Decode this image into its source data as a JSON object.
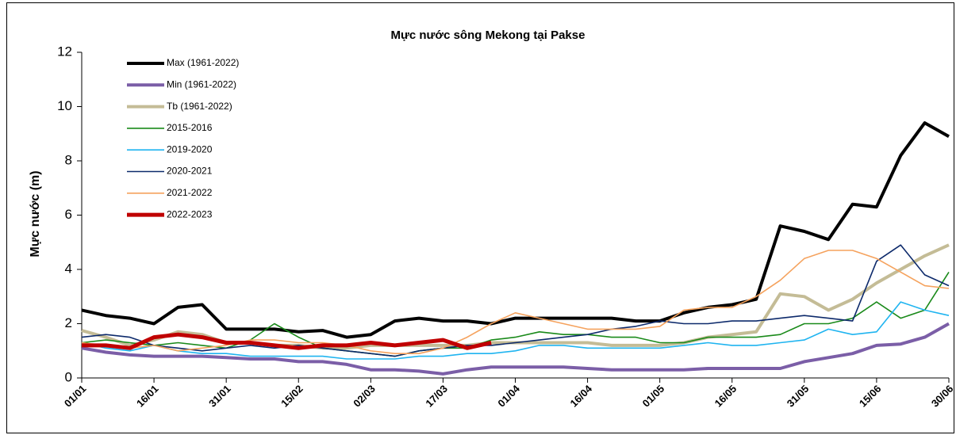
{
  "chart_data": {
    "type": "line",
    "title": "Mực nước sông Mekong tại Pakse",
    "y_label": "Mực nước (m)",
    "x": [
      1,
      6,
      11,
      16,
      21,
      26,
      31,
      36,
      41,
      46,
      51,
      56,
      61,
      66,
      71,
      76,
      81,
      86,
      91,
      96,
      101,
      106,
      111,
      116,
      121,
      126,
      131,
      136,
      141,
      146,
      151,
      156,
      161,
      166,
      171,
      176,
      181
    ],
    "xlim": [
      1,
      181
    ],
    "xticks": [
      {
        "value": 1,
        "label": "01/01"
      },
      {
        "value": 16,
        "label": "16/01"
      },
      {
        "value": 31,
        "label": "31/01"
      },
      {
        "value": 46,
        "label": "15/02"
      },
      {
        "value": 61,
        "label": "02/03"
      },
      {
        "value": 76,
        "label": "17/03"
      },
      {
        "value": 91,
        "label": "01/04"
      },
      {
        "value": 106,
        "label": "16/04"
      },
      {
        "value": 121,
        "label": "01/05"
      },
      {
        "value": 136,
        "label": "16/05"
      },
      {
        "value": 151,
        "label": "31/05"
      },
      {
        "value": 166,
        "label": "15/06"
      },
      {
        "value": 181,
        "label": "30/06"
      }
    ],
    "ylim": [
      0,
      12
    ],
    "yticks": [
      0,
      2,
      4,
      6,
      8,
      10,
      12
    ],
    "legend": "upper left",
    "series": [
      {
        "name": "Max (1961-2022)",
        "color": "#000000",
        "width": 4,
        "values": [
          2.5,
          2.3,
          2.2,
          2.0,
          2.6,
          2.7,
          1.8,
          1.8,
          1.8,
          1.7,
          1.75,
          1.5,
          1.6,
          2.1,
          2.2,
          2.1,
          2.1,
          2.0,
          2.2,
          2.2,
          2.2,
          2.2,
          2.2,
          2.1,
          2.1,
          2.4,
          2.6,
          2.7,
          2.9,
          5.6,
          5.4,
          5.1,
          6.4,
          6.3,
          8.2,
          9.4,
          8.9
        ]
      },
      {
        "name": "Min (1961-2022)",
        "color": "#7b5ea7",
        "width": 4,
        "values": [
          1.1,
          0.95,
          0.85,
          0.8,
          0.8,
          0.8,
          0.75,
          0.7,
          0.7,
          0.6,
          0.6,
          0.5,
          0.3,
          0.3,
          0.25,
          0.15,
          0.3,
          0.4,
          0.4,
          0.4,
          0.4,
          0.35,
          0.3,
          0.3,
          0.3,
          0.3,
          0.35,
          0.35,
          0.35,
          0.35,
          0.6,
          0.75,
          0.9,
          1.2,
          1.25,
          1.5,
          2.0
        ]
      },
      {
        "name": "Tb (1961-2022)",
        "color": "#c4bc96",
        "width": 4,
        "values": [
          1.75,
          1.5,
          1.2,
          1.4,
          1.7,
          1.6,
          1.3,
          1.3,
          1.2,
          1.2,
          1.1,
          1.1,
          1.2,
          1.2,
          1.2,
          1.2,
          1.2,
          1.3,
          1.3,
          1.3,
          1.3,
          1.3,
          1.2,
          1.2,
          1.2,
          1.3,
          1.5,
          1.6,
          1.7,
          3.1,
          3.0,
          2.5,
          2.9,
          3.5,
          4.0,
          4.5,
          4.9
        ]
      },
      {
        "name": "2015-2016",
        "color": "#1a8a1a",
        "width": 1.6,
        "values": [
          1.3,
          1.4,
          1.3,
          1.2,
          1.3,
          1.2,
          1.1,
          1.4,
          2.0,
          1.5,
          1.1,
          1.0,
          0.9,
          0.8,
          1.0,
          1.1,
          1.1,
          1.4,
          1.5,
          1.7,
          1.6,
          1.6,
          1.5,
          1.5,
          1.3,
          1.3,
          1.5,
          1.5,
          1.5,
          1.6,
          2.0,
          2.0,
          2.2,
          2.8,
          2.2,
          2.5,
          3.9
        ]
      },
      {
        "name": "2019-2020",
        "color": "#1fb4f0",
        "width": 1.6,
        "values": [
          1.3,
          1.1,
          1.0,
          1.2,
          1.0,
          0.9,
          0.9,
          0.8,
          0.8,
          0.8,
          0.8,
          0.7,
          0.7,
          0.7,
          0.8,
          0.8,
          0.9,
          0.9,
          1.0,
          1.2,
          1.2,
          1.1,
          1.1,
          1.1,
          1.1,
          1.2,
          1.3,
          1.2,
          1.2,
          1.3,
          1.4,
          1.8,
          1.6,
          1.7,
          2.8,
          2.5,
          2.3
        ]
      },
      {
        "name": "2020-2021",
        "color": "#0d2a6b",
        "width": 1.6,
        "values": [
          1.5,
          1.6,
          1.5,
          1.2,
          1.1,
          1.0,
          1.1,
          1.2,
          1.1,
          1.2,
          1.1,
          1.0,
          0.9,
          0.8,
          1.0,
          1.1,
          1.2,
          1.2,
          1.3,
          1.4,
          1.5,
          1.6,
          1.8,
          1.9,
          2.1,
          2.0,
          2.0,
          2.1,
          2.1,
          2.2,
          2.3,
          2.2,
          2.1,
          4.3,
          4.9,
          3.8,
          3.4
        ]
      },
      {
        "name": "2021-2022",
        "color": "#f5a25d",
        "width": 1.6,
        "values": [
          1.3,
          1.2,
          1.1,
          1.2,
          1.0,
          1.1,
          1.2,
          1.4,
          1.4,
          1.3,
          1.3,
          1.2,
          1.0,
          0.9,
          0.9,
          1.1,
          1.5,
          2.0,
          2.4,
          2.2,
          2.0,
          1.8,
          1.8,
          1.8,
          1.9,
          2.5,
          2.6,
          2.6,
          3.0,
          3.6,
          4.4,
          4.7,
          4.7,
          4.4,
          3.9,
          3.4,
          3.3
        ]
      },
      {
        "name": "2022-2023",
        "color": "#c00000",
        "width": 5,
        "values": [
          1.2,
          1.2,
          1.1,
          1.5,
          1.6,
          1.5,
          1.3,
          1.3,
          1.2,
          1.1,
          1.2,
          1.2,
          1.3,
          1.2,
          1.3,
          1.4,
          1.1,
          1.3,
          null,
          null,
          null,
          null,
          null,
          null,
          null,
          null,
          null,
          null,
          null,
          null,
          null,
          null,
          null,
          null,
          null,
          null,
          null
        ]
      }
    ]
  }
}
